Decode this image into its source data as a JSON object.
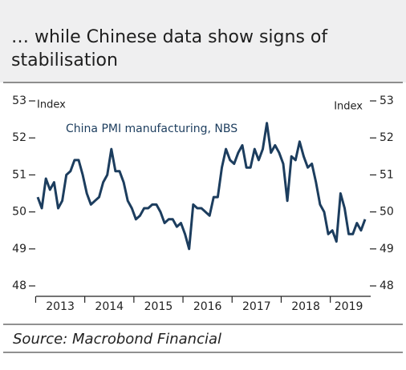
{
  "chart_data": {
    "type": "line",
    "title": [
      "… while Chinese data show signs of",
      "stabilisation"
    ],
    "annotation": "China PMI manufacturing, NBS",
    "ylabel": "Index",
    "y2label": "Index",
    "source": "Source: Macrobond Financial",
    "categories": [
      "2013",
      null,
      null,
      null,
      null,
      null,
      null,
      null,
      null,
      null,
      null,
      null,
      "2014",
      null,
      null,
      null,
      null,
      null,
      null,
      null,
      null,
      null,
      null,
      null,
      "2015",
      null,
      null,
      null,
      null,
      null,
      null,
      null,
      null,
      null,
      null,
      null,
      "2016",
      null,
      null,
      null,
      null,
      null,
      null,
      null,
      null,
      null,
      null,
      null,
      "2017",
      null,
      null,
      null,
      null,
      null,
      null,
      null,
      null,
      null,
      null,
      null,
      "2018",
      null,
      null,
      null,
      null,
      null,
      null,
      null,
      null,
      null,
      null,
      null,
      "2019",
      null,
      null,
      null,
      null,
      null,
      null,
      null,
      null
    ],
    "series": [
      {
        "name": "China PMI manufacturing, NBS",
        "color": "#1c3d5e",
        "values": [
          50.4,
          50.1,
          50.9,
          50.6,
          50.8,
          50.1,
          50.3,
          51.0,
          51.1,
          51.4,
          51.4,
          51.0,
          50.5,
          50.2,
          50.3,
          50.4,
          50.8,
          51.0,
          51.7,
          51.1,
          51.1,
          50.8,
          50.3,
          50.1,
          49.8,
          49.9,
          50.1,
          50.1,
          50.2,
          50.2,
          50.0,
          49.7,
          49.8,
          49.8,
          49.6,
          49.7,
          49.4,
          49.0,
          50.2,
          50.1,
          50.1,
          50.0,
          49.9,
          50.4,
          50.4,
          51.2,
          51.7,
          51.4,
          51.3,
          51.6,
          51.8,
          51.2,
          51.2,
          51.7,
          51.4,
          51.7,
          52.4,
          51.6,
          51.8,
          51.6,
          51.3,
          50.3,
          51.5,
          51.4,
          51.9,
          51.5,
          51.2,
          51.3,
          50.8,
          50.2,
          50.0,
          49.4,
          49.5,
          49.2,
          50.5,
          50.1,
          49.4,
          49.4,
          49.7,
          49.5,
          49.8
        ]
      }
    ],
    "ylim": [
      48,
      53
    ],
    "yticks": [
      48,
      49,
      50,
      51,
      52,
      53
    ],
    "y2lim": [
      48,
      53
    ],
    "y2ticks": [
      48,
      49,
      50,
      51,
      52,
      53
    ],
    "grid": false
  }
}
